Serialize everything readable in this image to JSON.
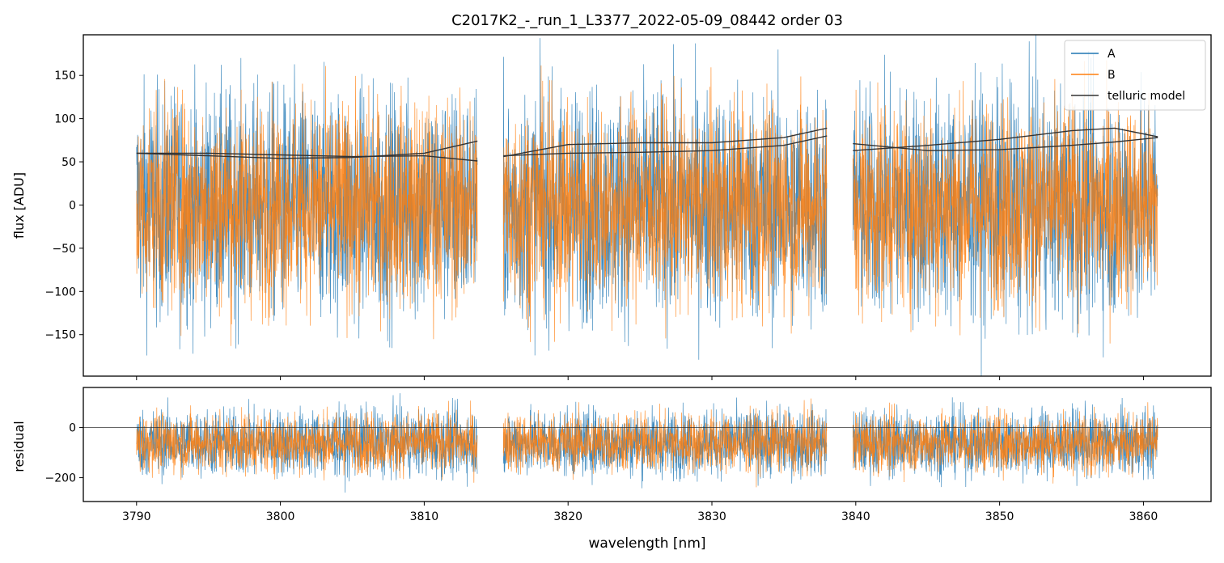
{
  "figure": {
    "title": "C2017K2_-_run_1_L3377_2022-05-09_08442  order 03"
  },
  "chart_data": [
    {
      "type": "line",
      "panel": "spectrum",
      "ylabel": "flux [ADU]",
      "xlim": [
        3786.3,
        3864.7
      ],
      "ylim": [
        -198,
        197
      ],
      "x_ticks": [
        3790,
        3800,
        3810,
        3820,
        3830,
        3840,
        3850,
        3860
      ],
      "y_ticks": [
        -150,
        -100,
        -50,
        0,
        50,
        100,
        150
      ],
      "y_tick_labels": [
        "−150",
        "−100",
        "−50",
        "0",
        "50",
        "100",
        "150"
      ],
      "legend": {
        "position": "top-right",
        "entries": [
          "A",
          "B",
          "telluric model"
        ]
      },
      "segments": [
        {
          "x_start": 3790.0,
          "x_end": 3813.7
        },
        {
          "x_start": 3815.5,
          "x_end": 3838.0
        },
        {
          "x_start": 3839.8,
          "x_end": 3861.0
        }
      ],
      "noise": {
        "A_center": 0,
        "A_spread": 95,
        "B_center": 0,
        "B_spread": 85
      },
      "series": [
        {
          "name": "A",
          "color": "#1f77b4",
          "description_values": "noisy spectrum"
        },
        {
          "name": "B",
          "color": "#ff7f0e",
          "description_values": "noisy spectrum"
        },
        {
          "name": "telluric model",
          "color": "#333333",
          "curves": [
            {
              "x": [
                3790,
                3795,
                3800,
                3805,
                3810,
                3813.7
              ],
              "y": [
                60,
                60,
                58,
                56,
                57,
                51
              ]
            },
            {
              "x": [
                3790,
                3795,
                3800,
                3805,
                3810,
                3813.7
              ],
              "y": [
                60,
                57,
                54,
                55,
                60,
                74
              ]
            },
            {
              "x": [
                3815.5,
                3820,
                3825,
                3830,
                3835,
                3838
              ],
              "y": [
                56,
                70,
                72,
                72,
                78,
                89
              ]
            },
            {
              "x": [
                3815.5,
                3820,
                3825,
                3830,
                3835,
                3838
              ],
              "y": [
                57,
                60,
                61,
                63,
                69,
                80
              ]
            },
            {
              "x": [
                3839.8,
                3845,
                3850,
                3855,
                3858,
                3861
              ],
              "y": [
                71,
                63,
                64,
                69,
                73,
                78
              ]
            },
            {
              "x": [
                3839.8,
                3845,
                3850,
                3855,
                3858,
                3861
              ],
              "y": [
                63,
                69,
                76,
                86,
                89,
                79
              ]
            }
          ]
        }
      ]
    },
    {
      "type": "line",
      "panel": "residual",
      "xlabel": "wavelength [nm]",
      "ylabel": "residual",
      "xlim": [
        3786.3,
        3864.7
      ],
      "ylim": [
        -295,
        160
      ],
      "x_ticks": [
        3790,
        3800,
        3810,
        3820,
        3830,
        3840,
        3850,
        3860
      ],
      "x_tick_labels": [
        "3790",
        "3800",
        "3810",
        "3820",
        "3830",
        "3840",
        "3850",
        "3860"
      ],
      "y_ticks": [
        -200,
        0
      ],
      "y_tick_labels": [
        "−200",
        "0"
      ],
      "reference_line": 0,
      "noise": {
        "A_center": -60,
        "A_spread": 95,
        "B_center": -60,
        "B_spread": 85
      },
      "series": [
        {
          "name": "A",
          "color": "#1f77b4"
        },
        {
          "name": "B",
          "color": "#ff7f0e"
        }
      ]
    }
  ]
}
